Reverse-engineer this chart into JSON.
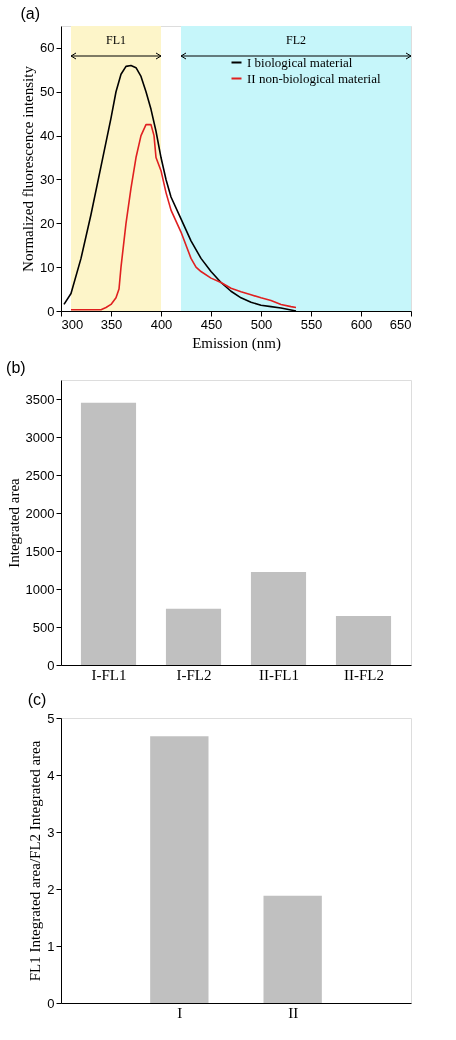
{
  "chart_data": [
    {
      "type": "line",
      "title": "(a)",
      "xlabel": "Emission (nm)",
      "ylabel": "Normalized fluorescence intensity",
      "xlim": [
        300,
        650
      ],
      "xticks": [
        300,
        350,
        400,
        450,
        500,
        550,
        600,
        650
      ],
      "ylim": [
        0,
        65
      ],
      "yticks": [
        0,
        10,
        20,
        30,
        40,
        50,
        60
      ],
      "legend": "top right",
      "grid": false,
      "bands": [
        {
          "axis": "x",
          "from": 310,
          "to": 400,
          "label": "FL1",
          "color": "#fdf5c9"
        },
        {
          "axis": "x",
          "from": 420,
          "to": 650,
          "label": "FL2",
          "color": "#c6f6fa"
        }
      ],
      "series": [
        {
          "name": "I  biological material",
          "color": "#000000",
          "x": [
            303,
            310,
            320,
            330,
            340,
            350,
            355,
            360,
            365,
            370,
            375,
            380,
            385,
            390,
            395,
            400,
            405,
            410,
            420,
            430,
            440,
            450,
            460,
            470,
            480,
            490,
            500,
            510,
            520,
            535
          ],
          "values": [
            1.5,
            4,
            12,
            22,
            33,
            44,
            50,
            54,
            55.8,
            56,
            55.5,
            53.5,
            50,
            46,
            41,
            35,
            30,
            26,
            21,
            16,
            12,
            9,
            6.5,
            4.5,
            3,
            2,
            1.3,
            1,
            0.7,
            0
          ]
        },
        {
          "name": "II non-biological material",
          "color": "#e02020",
          "x": [
            310,
            340,
            345,
            350,
            355,
            358,
            360,
            365,
            370,
            375,
            380,
            385,
            390,
            393,
            395,
            400,
            405,
            410,
            420,
            430,
            435,
            440,
            450,
            460,
            470,
            480,
            490,
            500,
            510,
            520,
            530,
            535
          ],
          "values": [
            0.3,
            0.3,
            0.8,
            1.5,
            3,
            5,
            10,
            20,
            28,
            35,
            40,
            42.5,
            42.5,
            40,
            35,
            32,
            27,
            23,
            18,
            12,
            10,
            9,
            7.5,
            6.5,
            5.2,
            4.4,
            3.7,
            3,
            2.4,
            1.5,
            1,
            0.8
          ]
        }
      ]
    },
    {
      "type": "bar",
      "title": "(b)",
      "ylabel": "Integrated area",
      "categories": [
        "I-FL1",
        "I-FL2",
        "II-FL1",
        "II-FL2"
      ],
      "values": [
        3450,
        740,
        1225,
        645
      ],
      "color": "#c0c0c0",
      "ylim": [
        0,
        3750
      ],
      "yticks": [
        0,
        500,
        1000,
        1500,
        2000,
        2500,
        3000,
        3500
      ],
      "grid": false
    },
    {
      "type": "bar",
      "title": "(c)",
      "ylabel": "FL1 Integrated area/FL2 Integrated area",
      "categories": [
        "I",
        "II"
      ],
      "values": [
        4.68,
        1.88
      ],
      "color": "#c0c0c0",
      "ylim": [
        0,
        5
      ],
      "yticks": [
        0,
        1,
        2,
        3,
        4,
        5
      ],
      "grid": false
    }
  ]
}
